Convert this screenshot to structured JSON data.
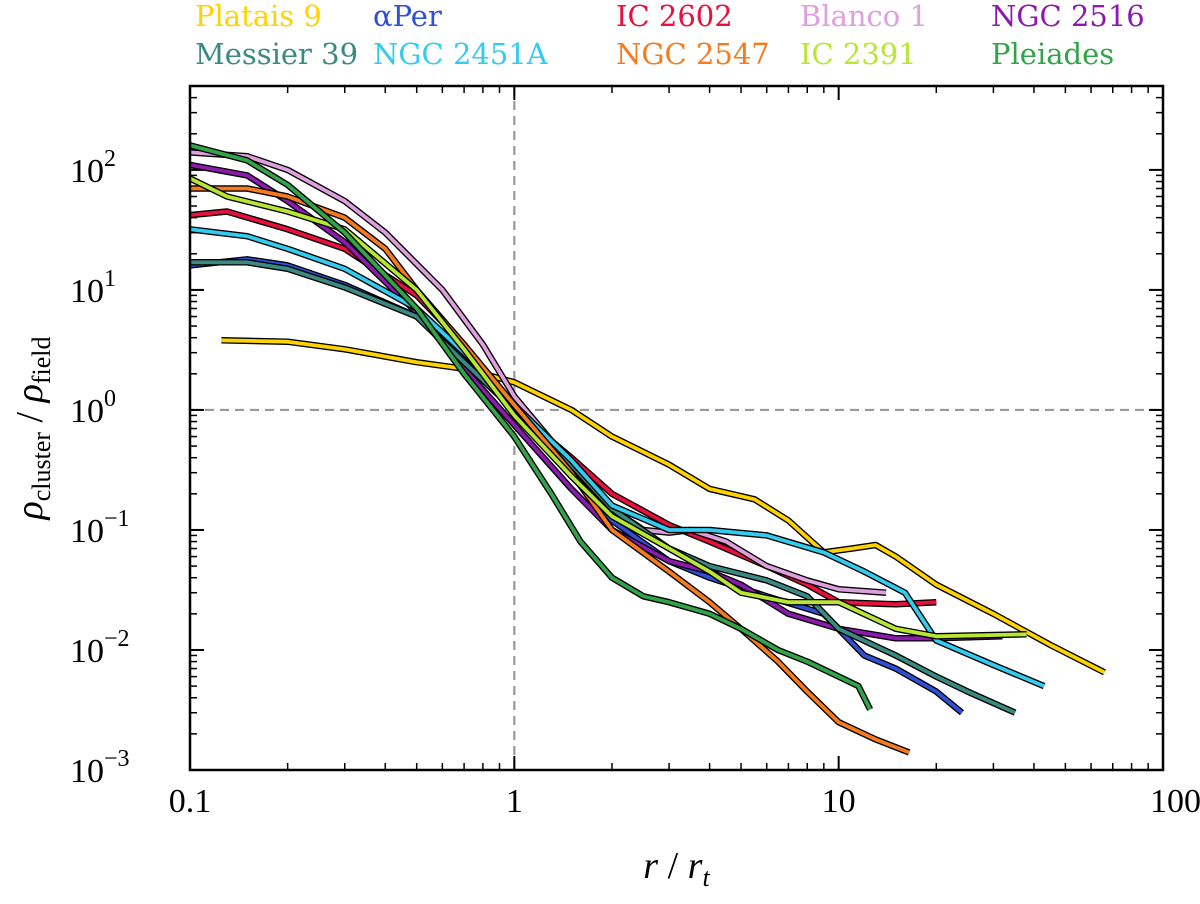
{
  "chart_data": {
    "type": "line",
    "x_scale": "log",
    "y_scale": "log",
    "xlim": [
      0.1,
      100
    ],
    "ylim": [
      0.001,
      500
    ],
    "x_ticks": [
      {
        "value": 0.1,
        "label": "0.1"
      },
      {
        "value": 1,
        "label": "1"
      },
      {
        "value": 10,
        "label": "10"
      },
      {
        "value": 100,
        "label": "100"
      }
    ],
    "y_ticks": [
      {
        "value": 0.001,
        "base": "10",
        "exp": "−3"
      },
      {
        "value": 0.01,
        "base": "10",
        "exp": "−2"
      },
      {
        "value": 0.1,
        "base": "10",
        "exp": "−1"
      },
      {
        "value": 1,
        "base": "10",
        "exp": "0"
      },
      {
        "value": 10,
        "base": "10",
        "exp": "1"
      },
      {
        "value": 100,
        "base": "10",
        "exp": "2"
      }
    ],
    "xlabel": {
      "r": "r",
      "slash": " / ",
      "rt": "r",
      "sub": "t"
    },
    "ylabel": {
      "rho": "ρ",
      "sub1": "cluster",
      "slash": " / ",
      "sub2": "field"
    },
    "reference_lines": {
      "x": 1,
      "y": 1,
      "color": "#999999"
    },
    "series": [
      {
        "name": "Platais 9",
        "color": "#FFD300",
        "x": [
          0.125,
          0.2,
          0.3,
          0.5,
          0.7,
          1.0,
          1.5,
          2.0,
          3.0,
          4.0,
          5.5,
          7.0,
          9.0,
          11.0,
          13.0,
          15.0,
          20.0,
          30.0,
          45.0,
          66.0
        ],
        "y": [
          3.8,
          3.7,
          3.2,
          2.5,
          2.2,
          1.7,
          1.0,
          0.6,
          0.35,
          0.22,
          0.18,
          0.12,
          0.065,
          0.07,
          0.075,
          0.06,
          0.035,
          0.02,
          0.011,
          0.0065
        ]
      },
      {
        "name": "αPer",
        "color": "#2F4FD8",
        "x": [
          0.1,
          0.15,
          0.2,
          0.3,
          0.5,
          0.7,
          1.0,
          1.5,
          2.0,
          3.0,
          4.0,
          6.0,
          9.0,
          12.0,
          15.0,
          20.0,
          24.0
        ],
        "y": [
          16,
          18,
          16,
          11,
          6,
          2.8,
          1.0,
          0.3,
          0.12,
          0.055,
          0.04,
          0.028,
          0.02,
          0.009,
          0.007,
          0.0045,
          0.003
        ]
      },
      {
        "name": "IC 2602",
        "color": "#E8103C",
        "x": [
          0.1,
          0.13,
          0.2,
          0.3,
          0.5,
          0.7,
          1.0,
          1.5,
          2.0,
          3.0,
          4.0,
          6.0,
          8.0,
          10.0,
          15.0,
          20.0
        ],
        "y": [
          42,
          45,
          32,
          22,
          9,
          3.5,
          1.0,
          0.4,
          0.2,
          0.11,
          0.08,
          0.05,
          0.035,
          0.025,
          0.024,
          0.025
        ]
      },
      {
        "name": "Blanco 1",
        "color": "#DDA0DD",
        "x": [
          0.1,
          0.15,
          0.2,
          0.3,
          0.4,
          0.6,
          0.8,
          1.0,
          1.5,
          2.0,
          2.5,
          3.0,
          3.5,
          4.5,
          6.0,
          8.0,
          10.0,
          14.0
        ],
        "y": [
          140,
          130,
          100,
          55,
          30,
          10,
          3.5,
          1.3,
          0.35,
          0.15,
          0.1,
          0.095,
          0.1,
          0.08,
          0.05,
          0.038,
          0.032,
          0.03
        ]
      },
      {
        "name": "NGC 2516",
        "color": "#8B1AAD",
        "x": [
          0.1,
          0.15,
          0.2,
          0.3,
          0.5,
          0.7,
          1.0,
          1.5,
          2.0,
          3.0,
          4.0,
          5.0,
          7.0,
          10.0,
          15.0,
          20.0,
          32.0
        ],
        "y": [
          110,
          90,
          55,
          25,
          6.5,
          2.2,
          0.75,
          0.22,
          0.1,
          0.055,
          0.045,
          0.035,
          0.02,
          0.015,
          0.0125,
          0.0125,
          0.013
        ]
      },
      {
        "name": "Messier 39",
        "color": "#3A8A82",
        "x": [
          0.1,
          0.15,
          0.2,
          0.3,
          0.5,
          0.7,
          1.0,
          1.5,
          2.0,
          3.0,
          4.0,
          6.0,
          8.0,
          10.0,
          15.0,
          20.0,
          25.0,
          35.0
        ],
        "y": [
          17,
          17,
          15,
          10.5,
          6,
          2.5,
          1.0,
          0.35,
          0.15,
          0.07,
          0.05,
          0.038,
          0.028,
          0.015,
          0.009,
          0.006,
          0.0045,
          0.003
        ]
      },
      {
        "name": "NGC 2451A",
        "color": "#33CCEE",
        "x": [
          0.1,
          0.15,
          0.2,
          0.3,
          0.5,
          0.7,
          1.0,
          1.5,
          2.0,
          3.0,
          4.0,
          6.0,
          9.0,
          12.0,
          16.0,
          20.0,
          30.0,
          43.0
        ],
        "y": [
          32,
          28,
          22,
          15,
          7,
          3.0,
          1.1,
          0.38,
          0.16,
          0.1,
          0.1,
          0.09,
          0.065,
          0.045,
          0.03,
          0.012,
          0.0075,
          0.005
        ]
      },
      {
        "name": "NGC 2547",
        "color": "#F57B20",
        "x": [
          0.1,
          0.15,
          0.2,
          0.3,
          0.4,
          0.5,
          0.7,
          1.0,
          1.5,
          2.0,
          3.0,
          4.0,
          5.0,
          6.5,
          8.0,
          10.0,
          13.0,
          16.5
        ],
        "y": [
          70,
          70,
          60,
          40,
          22,
          10,
          3.5,
          1.1,
          0.3,
          0.1,
          0.045,
          0.025,
          0.015,
          0.008,
          0.0045,
          0.0025,
          0.0018,
          0.0014
        ]
      },
      {
        "name": "IC 2391",
        "color": "#B8E632",
        "x": [
          0.1,
          0.13,
          0.2,
          0.3,
          0.5,
          0.7,
          1.0,
          1.5,
          2.0,
          3.0,
          4.0,
          5.0,
          7.0,
          10.0,
          15.0,
          20.0,
          38.0
        ],
        "y": [
          85,
          60,
          45,
          32,
          10,
          3.2,
          0.9,
          0.28,
          0.13,
          0.07,
          0.045,
          0.03,
          0.025,
          0.025,
          0.015,
          0.013,
          0.0135
        ]
      },
      {
        "name": "Pleiades",
        "color": "#33A34A",
        "x": [
          0.1,
          0.15,
          0.2,
          0.3,
          0.5,
          0.7,
          1.0,
          1.3,
          1.6,
          2.0,
          2.5,
          3.0,
          4.0,
          5.0,
          6.5,
          8.0,
          10.0,
          11.5,
          12.5
        ],
        "y": [
          160,
          120,
          75,
          30,
          7,
          2.0,
          0.6,
          0.2,
          0.08,
          0.04,
          0.028,
          0.025,
          0.02,
          0.015,
          0.01,
          0.008,
          0.006,
          0.005,
          0.0032
        ]
      }
    ]
  }
}
